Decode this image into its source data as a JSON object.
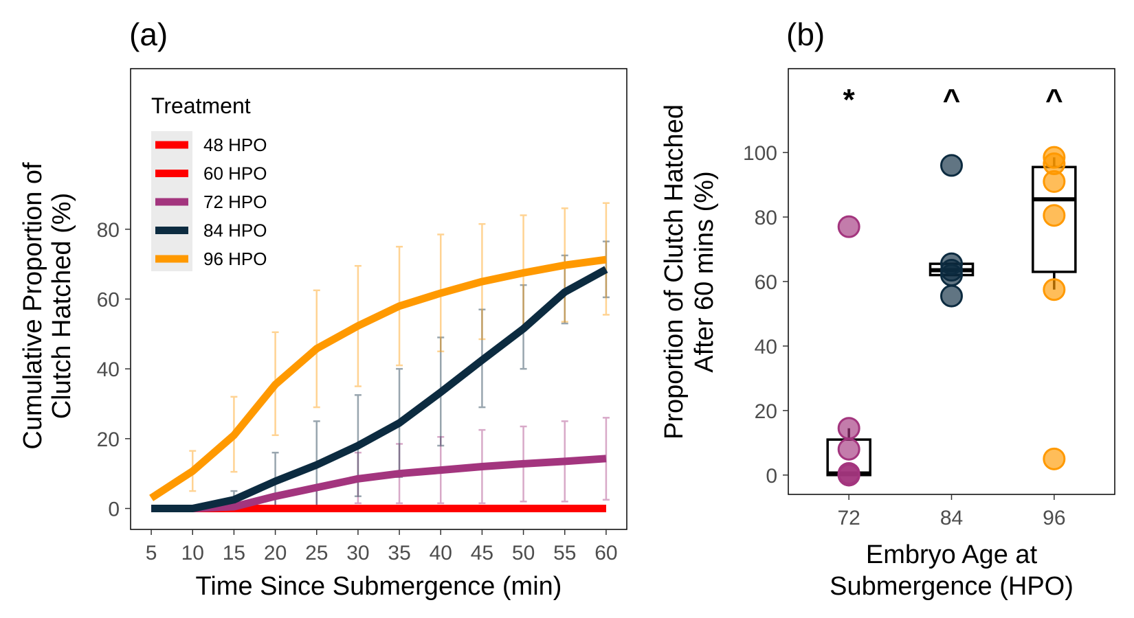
{
  "panel_a": {
    "label": "(a)",
    "legend_title": "Treatment"
  },
  "panel_b": {
    "label": "(b)"
  },
  "chart_data": [
    {
      "type": "line",
      "xlabel": "Time Since Submergence (min)",
      "ylabel": [
        "Cumulative Proportion of",
        "Clutch Hatched (%)"
      ],
      "x": [
        5,
        10,
        15,
        20,
        25,
        30,
        35,
        40,
        45,
        50,
        55,
        60
      ],
      "xlim": [
        2.5,
        62.5
      ],
      "ylim": [
        -6,
        126
      ],
      "yticks": [
        0,
        20,
        40,
        60,
        80
      ],
      "grid": false,
      "legend_position": "top-left",
      "series": [
        {
          "name": "48 HPO",
          "color": "#ff0000",
          "values": [
            0,
            0,
            0,
            0,
            0,
            0,
            0,
            0,
            0,
            0,
            0,
            0
          ],
          "upper": [
            0,
            0,
            0,
            0,
            0,
            0,
            0,
            0,
            0,
            0,
            0,
            0
          ],
          "lower": [
            0,
            0,
            0,
            0,
            0,
            0,
            0,
            0,
            0,
            0,
            0,
            0
          ]
        },
        {
          "name": "60 HPO",
          "color": "#ff0000",
          "values": [
            0,
            0,
            0,
            0,
            0,
            0,
            0,
            0,
            0,
            0,
            0,
            0
          ],
          "upper": [
            0,
            0,
            0,
            0,
            0,
            0,
            0,
            0,
            0,
            0,
            0,
            0
          ],
          "lower": [
            0,
            0,
            0,
            0,
            0,
            0,
            0,
            0,
            0,
            0,
            0,
            0
          ]
        },
        {
          "name": "72 HPO",
          "color": "#a3357e",
          "values": [
            0,
            0,
            0.5,
            3.5,
            6,
            8.5,
            10,
            11,
            12,
            12.8,
            13.5,
            14.3
          ],
          "upper": [
            0,
            0,
            0,
            3.5,
            6,
            16,
            18.5,
            20.5,
            22.5,
            23.5,
            25,
            26
          ],
          "lower": [
            0,
            0,
            0,
            0,
            0,
            1.5,
            1.5,
            1.5,
            1.5,
            2,
            2,
            2.5
          ]
        },
        {
          "name": "84 HPO",
          "color": "#0c2b40",
          "values": [
            0,
            0,
            2.5,
            7.8,
            12.5,
            18,
            24.5,
            33.3,
            42.5,
            51.5,
            62,
            68.5
          ],
          "upper": [
            0,
            0,
            5,
            16,
            25,
            32.5,
            40,
            49,
            57,
            64,
            72.5,
            76.5
          ],
          "lower": [
            0,
            0,
            0,
            0,
            0,
            3.5,
            9,
            18,
            29,
            40,
            53,
            60.5
          ]
        },
        {
          "name": "96 HPO",
          "color": "#ff9900",
          "values": [
            3,
            10.7,
            21,
            35.5,
            45.8,
            52.3,
            58,
            61.7,
            65,
            67.5,
            69.7,
            71.3
          ],
          "upper": [
            3,
            16.5,
            32,
            50.5,
            62.5,
            69.5,
            75,
            78.5,
            81.5,
            84,
            86,
            87.5
          ],
          "lower": [
            3,
            5,
            10.5,
            21,
            29,
            35,
            41,
            45,
            48.5,
            51.5,
            53.5,
            55.5
          ]
        }
      ]
    },
    {
      "type": "box",
      "xlabel": [
        "Embryo Age at",
        "Submergence (HPO)"
      ],
      "ylabel": [
        "Proportion of Clutch Hatched",
        "After 60 mins (%)"
      ],
      "categories": [
        "72",
        "84",
        "96"
      ],
      "ylim": [
        -6,
        126
      ],
      "yticks": [
        0,
        20,
        40,
        60,
        80,
        100
      ],
      "grid": false,
      "groups": [
        {
          "category": "72",
          "color": "#a3357e",
          "significance": "*",
          "box": {
            "whisker_low": 0,
            "q1": 0,
            "median": 0.5,
            "q3": 11,
            "whisker_high": 14.5
          },
          "points": [
            0,
            0,
            0.5,
            8,
            14.5,
            77
          ]
        },
        {
          "category": "84",
          "color": "#0c2b40",
          "significance": "^",
          "box": {
            "whisker_low": 62,
            "q1": 62,
            "median": 63.5,
            "q3": 65.5,
            "whisker_high": 65.5
          },
          "points": [
            55.5,
            62,
            63.5,
            65.5,
            96
          ]
        },
        {
          "category": "96",
          "color": "#ff9900",
          "significance": "^",
          "box": {
            "whisker_low": 57.5,
            "q1": 63,
            "median": 85.5,
            "q3": 95.5,
            "whisker_high": 98.5
          },
          "points": [
            5,
            57.5,
            80.5,
            91,
            96.5,
            98.5
          ]
        }
      ]
    }
  ]
}
